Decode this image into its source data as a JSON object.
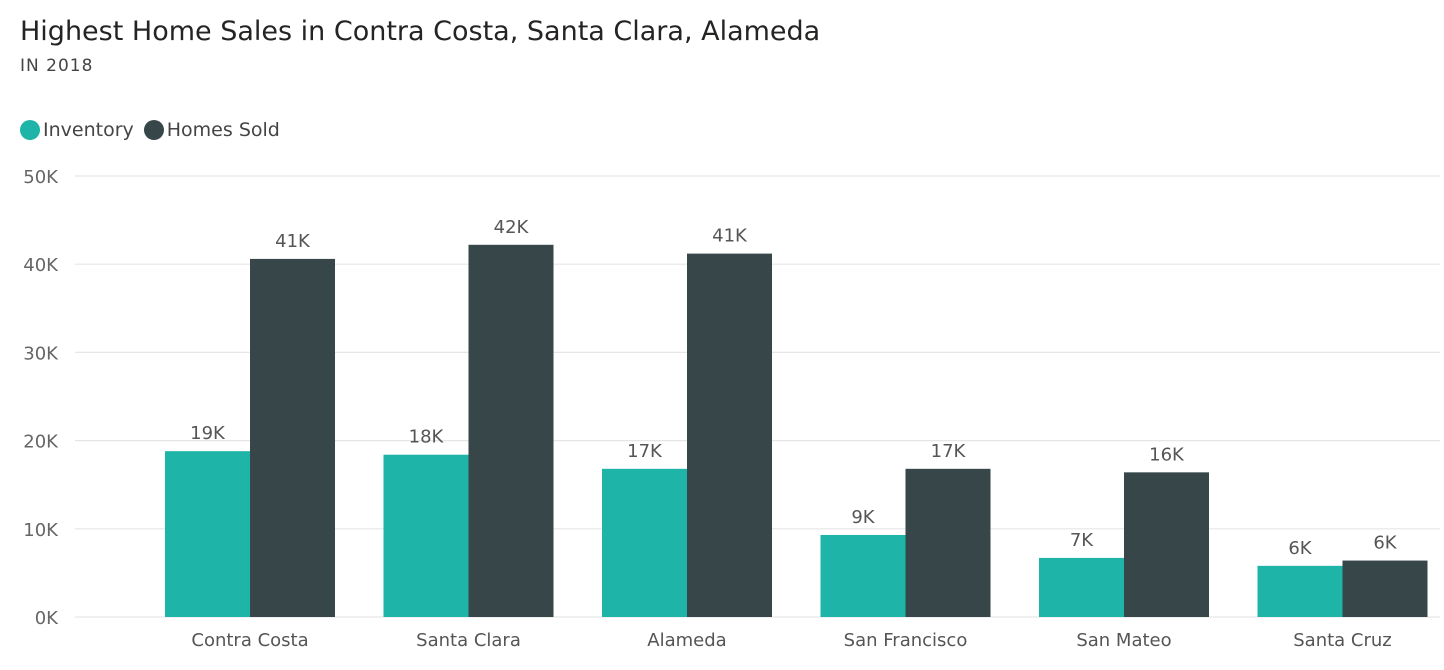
{
  "chart_data": {
    "type": "bar",
    "title": "Highest Home Sales in Contra Costa, Santa Clara, Alameda",
    "subtitle": "IN 2018",
    "categories": [
      "Contra Costa",
      "Santa Clara",
      "Alameda",
      "San Francisco",
      "San Mateo",
      "Santa Cruz"
    ],
    "series": [
      {
        "name": "Inventory",
        "color": "#1EB5A8",
        "values": [
          18800,
          18400,
          16800,
          9300,
          6700,
          5800
        ],
        "labels": [
          "19K",
          "18K",
          "17K",
          "9K",
          "7K",
          "6K"
        ]
      },
      {
        "name": "Homes Sold",
        "color": "#374649",
        "values": [
          40600,
          42200,
          41200,
          16800,
          16400,
          6400
        ],
        "labels": [
          "41K",
          "42K",
          "41K",
          "17K",
          "16K",
          "6K"
        ]
      }
    ],
    "yticks": [
      "0K",
      "10K",
      "20K",
      "30K",
      "40K",
      "50K"
    ],
    "ylim": [
      0,
      50000
    ],
    "grid": true,
    "legend": "top-left"
  }
}
